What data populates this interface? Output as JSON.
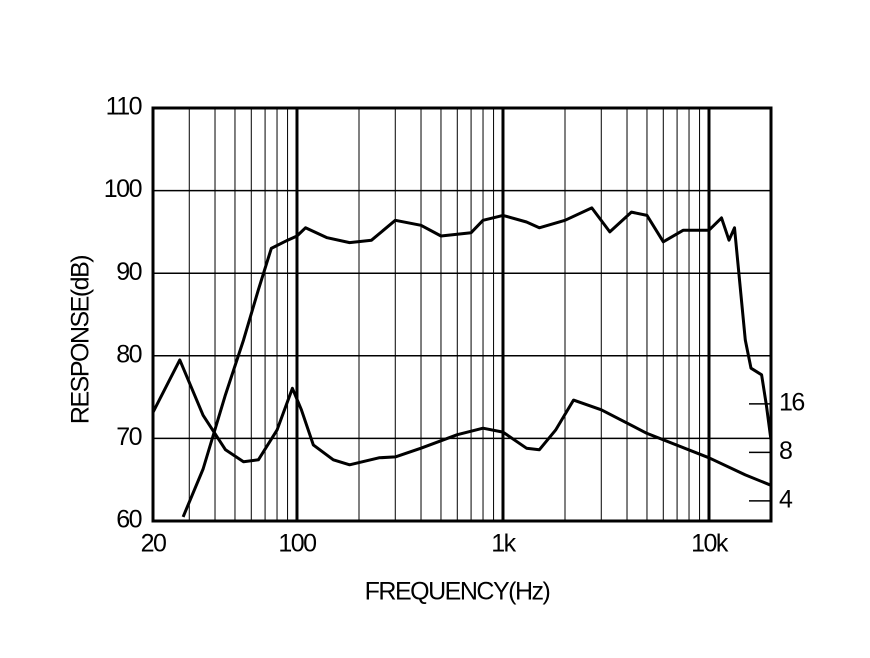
{
  "chart_data": {
    "type": "line",
    "x_label": "FREQUENCY(Hz)",
    "y_label": "RESPONSE(dB)",
    "xscale": "log",
    "xlim": [
      20,
      20000
    ],
    "xticks": [
      20,
      100,
      {
        "value": 1000,
        "label": "1k"
      },
      {
        "value": 10000,
        "label": "10k"
      }
    ],
    "xminor": [
      30,
      40,
      50,
      60,
      70,
      80,
      90,
      200,
      300,
      400,
      500,
      600,
      700,
      800,
      900,
      2000,
      3000,
      4000,
      5000,
      6000,
      7000,
      8000,
      9000
    ],
    "ylim": [
      60,
      110
    ],
    "yticks": [
      60,
      70,
      80,
      90,
      100,
      110
    ],
    "y2scale": "log",
    "y2lim": [
      3,
      1100
    ],
    "y2ticks": [
      4,
      8,
      16
    ],
    "grid": true,
    "series": [
      {
        "color": "#000000",
        "x": [
          28,
          35,
          45,
          55,
          65,
          75,
          90,
          100,
          110,
          140,
          180,
          230,
          300,
          400,
          500,
          700,
          800,
          1000,
          1300,
          1500,
          2000,
          2700,
          3300,
          4200,
          5000,
          6000,
          7500,
          10000,
          11500,
          12500,
          13300,
          15000,
          16000,
          18000,
          19000,
          20000
        ],
        "values": [
          60.5,
          66.3,
          75.3,
          81.9,
          88,
          93,
          94,
          94.5,
          95.5,
          94.3,
          93.7,
          94,
          96.4,
          95.8,
          94.5,
          94.9,
          96.4,
          97,
          96.2,
          95.5,
          96.4,
          97.9,
          95,
          97.4,
          97,
          93.8,
          95.2,
          95.2,
          96.7,
          94,
          95.5,
          81.9,
          78.5,
          77.7,
          74,
          69.8
        ]
      },
      {
        "color": "#000000",
        "axis": "y2",
        "x": [
          20,
          27,
          35,
          45,
          55,
          65,
          80,
          95,
          105,
          120,
          150,
          180,
          250,
          300,
          400,
          600,
          800,
          1000,
          1300,
          1500,
          1800,
          2200,
          3000,
          5000,
          10000,
          15000,
          20000
        ],
        "values": [
          14.2,
          30,
          13.6,
          8.3,
          7,
          7.2,
          11,
          20,
          14.7,
          8.9,
          7.2,
          6.7,
          7.4,
          7.5,
          8.5,
          10.3,
          11.3,
          10.7,
          8.5,
          8.3,
          11,
          16.9,
          14.7,
          10.5,
          7.4,
          5.8,
          5
        ]
      }
    ]
  }
}
